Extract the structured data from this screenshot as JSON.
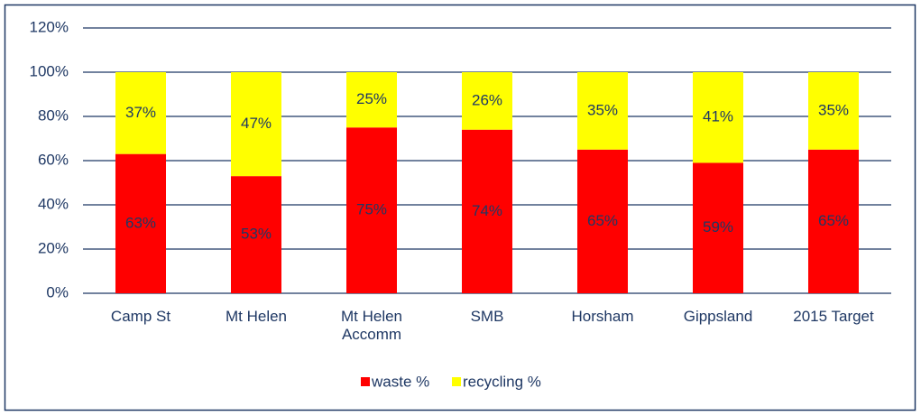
{
  "chart_data": {
    "type": "stacked_bar",
    "categories": [
      "Camp St",
      "Mt Helen",
      "Mt Helen Accomm",
      "SMB",
      "Horsham",
      "Gippsland",
      "2015 Target"
    ],
    "series": [
      {
        "name": "waste %",
        "color": "#ff0000",
        "values": [
          63,
          53,
          75,
          74,
          65,
          59,
          65
        ],
        "value_labels": [
          "63%",
          "53%",
          "75%",
          "74%",
          "65%",
          "59%",
          "65%"
        ]
      },
      {
        "name": "recycling %",
        "color": "#ffff00",
        "values": [
          37,
          47,
          25,
          26,
          35,
          41,
          35
        ],
        "value_labels": [
          "37%",
          "47%",
          "25%",
          "26%",
          "35%",
          "41%",
          "35%"
        ]
      }
    ],
    "ylim": [
      0,
      120
    ],
    "yticks": [
      {
        "value": 0,
        "label": "0%"
      },
      {
        "value": 20,
        "label": "20%"
      },
      {
        "value": 40,
        "label": "40%"
      },
      {
        "value": 60,
        "label": "60%"
      },
      {
        "value": 80,
        "label": "80%"
      },
      {
        "value": 100,
        "label": "100%"
      },
      {
        "value": 120,
        "label": "120%"
      }
    ],
    "grid": true,
    "legend": "bottom"
  }
}
